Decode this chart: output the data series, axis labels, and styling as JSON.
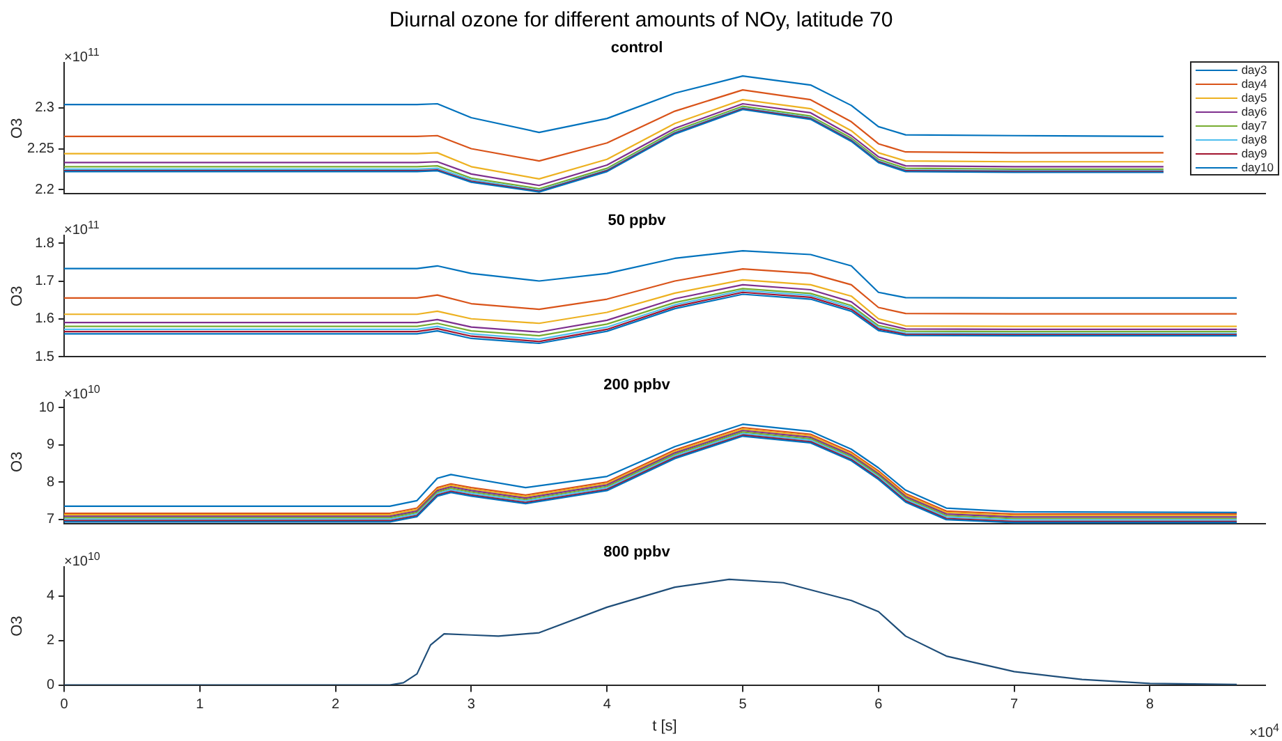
{
  "chart_data": [
    {
      "type": "line",
      "title": "Diurnal ozone for different amounts of NOy, latitude 70",
      "subtitle": "control",
      "ylabel": "O3",
      "annotations": [
        "×10$^{11}$"
      ],
      "legend": "top right",
      "tick_labels": "y",
      "xlim": [
        0,
        8.85
      ],
      "ylim": [
        2.195,
        2.355
      ],
      "yticks": [
        2.2,
        2.25,
        2.3
      ],
      "x": [
        0,
        2.6,
        2.75,
        3.0,
        3.5,
        4.0,
        4.5,
        5.0,
        5.5,
        5.8,
        6.0,
        6.2,
        7.0,
        8.1
      ],
      "series": [
        {
          "name": "day3",
          "color": "#0072bd",
          "values": [
            2.304,
            2.304,
            2.305,
            2.288,
            2.27,
            2.287,
            2.318,
            2.339,
            2.328,
            2.303,
            2.277,
            2.267,
            2.266,
            2.265
          ]
        },
        {
          "name": "day4",
          "color": "#d95319",
          "values": [
            2.265,
            2.265,
            2.266,
            2.25,
            2.235,
            2.257,
            2.296,
            2.322,
            2.31,
            2.283,
            2.256,
            2.246,
            2.245,
            2.245
          ]
        },
        {
          "name": "day5",
          "color": "#edb120",
          "values": [
            2.244,
            2.244,
            2.245,
            2.228,
            2.213,
            2.237,
            2.281,
            2.31,
            2.299,
            2.272,
            2.245,
            2.235,
            2.234,
            2.234
          ]
        },
        {
          "name": "day6",
          "color": "#7e2f8e",
          "values": [
            2.233,
            2.233,
            2.234,
            2.219,
            2.205,
            2.23,
            2.275,
            2.305,
            2.294,
            2.266,
            2.24,
            2.229,
            2.228,
            2.228
          ]
        },
        {
          "name": "day7",
          "color": "#77ac30",
          "values": [
            2.228,
            2.228,
            2.229,
            2.214,
            2.201,
            2.226,
            2.272,
            2.302,
            2.29,
            2.263,
            2.237,
            2.226,
            2.225,
            2.225
          ]
        },
        {
          "name": "day8",
          "color": "#4dbeee",
          "values": [
            2.225,
            2.225,
            2.226,
            2.212,
            2.199,
            2.224,
            2.27,
            2.3,
            2.288,
            2.261,
            2.235,
            2.224,
            2.223,
            2.223
          ]
        },
        {
          "name": "day9",
          "color": "#a2142f",
          "values": [
            2.223,
            2.223,
            2.224,
            2.21,
            2.198,
            2.223,
            2.269,
            2.299,
            2.287,
            2.26,
            2.234,
            2.223,
            2.222,
            2.222
          ]
        },
        {
          "name": "day10",
          "color": "#0072bd",
          "values": [
            2.222,
            2.222,
            2.223,
            2.209,
            2.197,
            2.222,
            2.268,
            2.298,
            2.286,
            2.259,
            2.233,
            2.222,
            2.221,
            2.221
          ]
        }
      ]
    },
    {
      "type": "line",
      "title": "50 ppbv",
      "ylabel": "O3",
      "annotations": [
        "×10$^{11}$"
      ],
      "tick_labels": "y",
      "xlim": [
        0,
        8.85
      ],
      "ylim": [
        1.5,
        1.82
      ],
      "yticks": [
        1.5,
        1.6,
        1.7,
        1.8
      ],
      "x": [
        0,
        2.6,
        2.75,
        3.0,
        3.5,
        4.0,
        4.5,
        5.0,
        5.5,
        5.8,
        6.0,
        6.2,
        7.0,
        8.64
      ],
      "series": [
        {
          "color": "#0072bd",
          "values": [
            1.733,
            1.733,
            1.74,
            1.72,
            1.7,
            1.72,
            1.76,
            1.78,
            1.77,
            1.74,
            1.67,
            1.656,
            1.655,
            1.655
          ]
        },
        {
          "color": "#d95319",
          "values": [
            1.655,
            1.655,
            1.663,
            1.64,
            1.625,
            1.652,
            1.7,
            1.732,
            1.72,
            1.69,
            1.63,
            1.614,
            1.613,
            1.613
          ]
        },
        {
          "color": "#edb120",
          "values": [
            1.612,
            1.612,
            1.62,
            1.6,
            1.588,
            1.617,
            1.668,
            1.703,
            1.69,
            1.66,
            1.6,
            1.581,
            1.58,
            1.58
          ]
        },
        {
          "color": "#7e2f8e",
          "values": [
            1.59,
            1.59,
            1.598,
            1.578,
            1.565,
            1.596,
            1.653,
            1.69,
            1.677,
            1.645,
            1.59,
            1.573,
            1.572,
            1.572
          ]
        },
        {
          "color": "#77ac30",
          "values": [
            1.58,
            1.58,
            1.588,
            1.568,
            1.555,
            1.586,
            1.643,
            1.68,
            1.667,
            1.635,
            1.582,
            1.567,
            1.566,
            1.566
          ]
        },
        {
          "color": "#4dbeee",
          "values": [
            1.572,
            1.572,
            1.58,
            1.56,
            1.546,
            1.578,
            1.637,
            1.675,
            1.662,
            1.63,
            1.577,
            1.562,
            1.561,
            1.561
          ]
        },
        {
          "color": "#a2142f",
          "values": [
            1.566,
            1.566,
            1.574,
            1.554,
            1.54,
            1.572,
            1.632,
            1.67,
            1.657,
            1.625,
            1.573,
            1.559,
            1.558,
            1.558
          ]
        },
        {
          "color": "#0072bd",
          "values": [
            1.56,
            1.56,
            1.568,
            1.548,
            1.535,
            1.567,
            1.627,
            1.665,
            1.652,
            1.62,
            1.569,
            1.556,
            1.555,
            1.555
          ]
        }
      ]
    },
    {
      "type": "line",
      "title": "200 ppbv",
      "ylabel": "O3",
      "annotations": [
        "×10$^{10}$"
      ],
      "tick_labels": "y",
      "xlim": [
        0,
        8.85
      ],
      "ylim": [
        6.88,
        10.2
      ],
      "yticks": [
        7,
        8,
        9,
        10
      ],
      "x": [
        0,
        2.4,
        2.6,
        2.75,
        2.85,
        3.0,
        3.4,
        4.0,
        4.5,
        5.0,
        5.5,
        5.8,
        6.0,
        6.2,
        6.5,
        7.0,
        8.64
      ],
      "series": [
        {
          "color": "#0072bd",
          "values": [
            7.35,
            7.35,
            7.5,
            8.1,
            8.2,
            8.1,
            7.85,
            8.15,
            8.95,
            9.55,
            9.36,
            8.88,
            8.38,
            7.78,
            7.3,
            7.2,
            7.18
          ]
        },
        {
          "color": "#d95319",
          "values": [
            7.16,
            7.16,
            7.3,
            7.85,
            7.95,
            7.85,
            7.65,
            8.0,
            8.86,
            9.46,
            9.28,
            8.8,
            8.3,
            7.69,
            7.22,
            7.14,
            7.14
          ]
        },
        {
          "color": "#edb120",
          "values": [
            7.12,
            7.12,
            7.26,
            7.81,
            7.91,
            7.81,
            7.61,
            7.96,
            8.82,
            9.42,
            9.24,
            8.76,
            8.26,
            7.65,
            7.18,
            7.1,
            7.1
          ]
        },
        {
          "color": "#7e2f8e",
          "values": [
            7.08,
            7.08,
            7.22,
            7.77,
            7.87,
            7.77,
            7.57,
            7.92,
            8.78,
            9.38,
            9.2,
            8.72,
            8.22,
            7.61,
            7.14,
            7.06,
            7.06
          ]
        },
        {
          "color": "#77ac30",
          "values": [
            7.04,
            7.04,
            7.18,
            7.73,
            7.83,
            7.73,
            7.53,
            7.88,
            8.74,
            9.34,
            9.16,
            8.68,
            8.18,
            7.57,
            7.1,
            7.02,
            7.02
          ]
        },
        {
          "color": "#4dbeee",
          "values": [
            7.0,
            7.0,
            7.14,
            7.69,
            7.79,
            7.69,
            7.49,
            7.84,
            8.7,
            9.3,
            9.12,
            8.64,
            8.14,
            7.53,
            7.06,
            6.98,
            6.98
          ]
        },
        {
          "color": "#a2142f",
          "values": [
            6.96,
            6.96,
            7.1,
            7.65,
            7.75,
            7.65,
            7.45,
            7.8,
            8.66,
            9.26,
            9.08,
            8.6,
            8.1,
            7.49,
            7.02,
            6.94,
            6.94
          ]
        },
        {
          "color": "#0072bd",
          "values": [
            6.93,
            6.93,
            7.07,
            7.62,
            7.72,
            7.62,
            7.42,
            7.77,
            8.63,
            9.23,
            9.05,
            8.57,
            8.07,
            7.46,
            6.99,
            6.91,
            6.91
          ]
        }
      ]
    },
    {
      "type": "line",
      "title": "800 ppbv",
      "ylabel": "O3",
      "xlabel": "t [s]",
      "annotations": [
        "×10$^{10}$",
        "×10$^{4}$"
      ],
      "xlim": [
        0,
        8.85
      ],
      "xticks": [
        0,
        1,
        2,
        3,
        4,
        5,
        6,
        7,
        8
      ],
      "ylim": [
        0,
        5.3
      ],
      "yticks": [
        0,
        2,
        4
      ],
      "x": [
        0,
        2.4,
        2.5,
        2.6,
        2.7,
        2.8,
        3.0,
        3.2,
        3.5,
        4.0,
        4.5,
        4.9,
        5.3,
        5.8,
        6.0,
        6.2,
        6.5,
        7.0,
        7.5,
        8.0,
        8.64
      ],
      "series": [
        {
          "color": "#1f4e79",
          "values": [
            0,
            0,
            0.1,
            0.5,
            1.8,
            2.3,
            2.25,
            2.2,
            2.35,
            3.5,
            4.4,
            4.75,
            4.6,
            3.8,
            3.3,
            2.2,
            1.3,
            0.6,
            0.25,
            0.07,
            0.02
          ]
        }
      ]
    }
  ]
}
